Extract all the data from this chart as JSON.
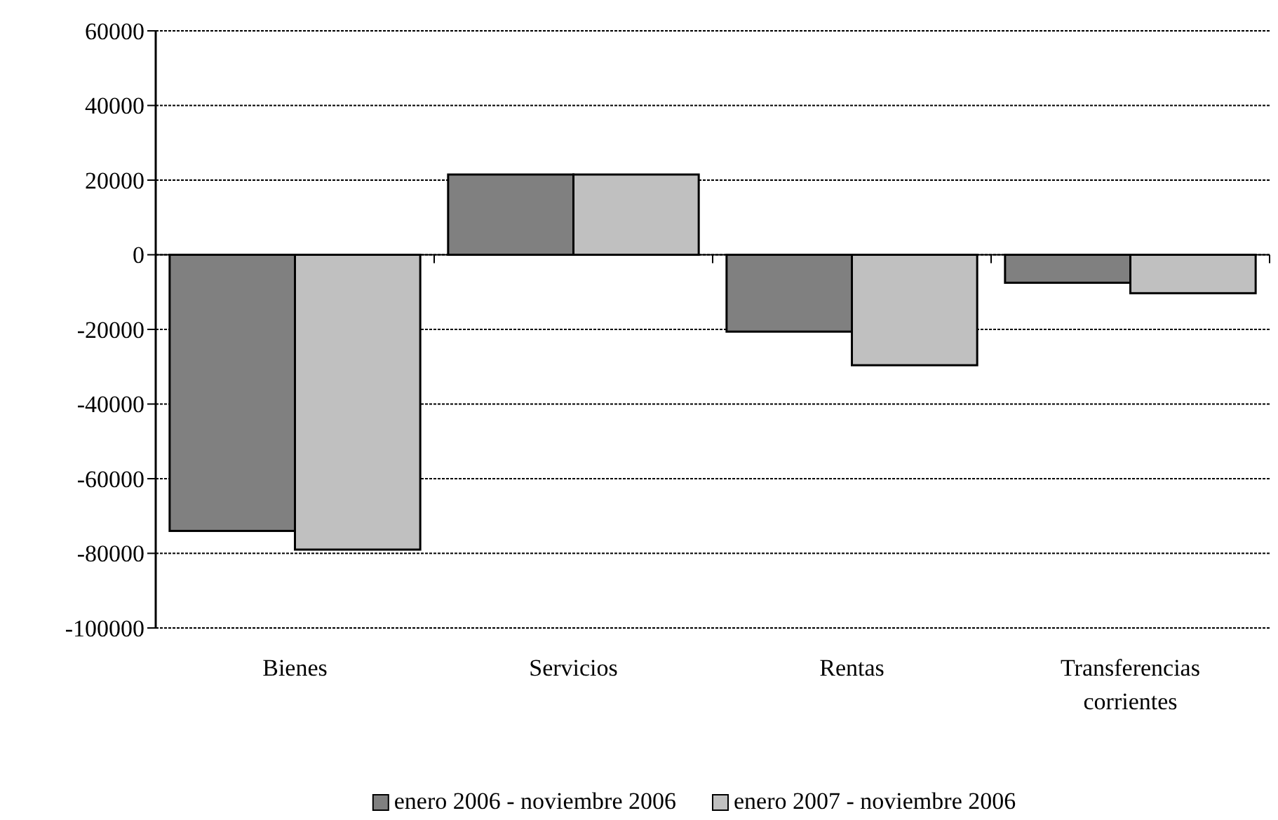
{
  "chart_data": {
    "type": "bar",
    "categories": [
      "Bienes",
      "Servicios",
      "Rentas",
      "Transferencias corrientes"
    ],
    "series": [
      {
        "name": "enero 2006 - noviembre 2006",
        "color": "#808080",
        "values": [
          -74000,
          21500,
          -20600,
          -7500
        ]
      },
      {
        "name": "enero 2007 - noviembre 2006",
        "color": "#c0c0c0",
        "values": [
          -79000,
          21500,
          -29600,
          -10300
        ]
      }
    ],
    "ylim": [
      -100000,
      60000
    ],
    "yticks": [
      -100000,
      -80000,
      -60000,
      -40000,
      -20000,
      0,
      20000,
      40000,
      60000
    ],
    "grid": "y",
    "legend": "bottom"
  }
}
